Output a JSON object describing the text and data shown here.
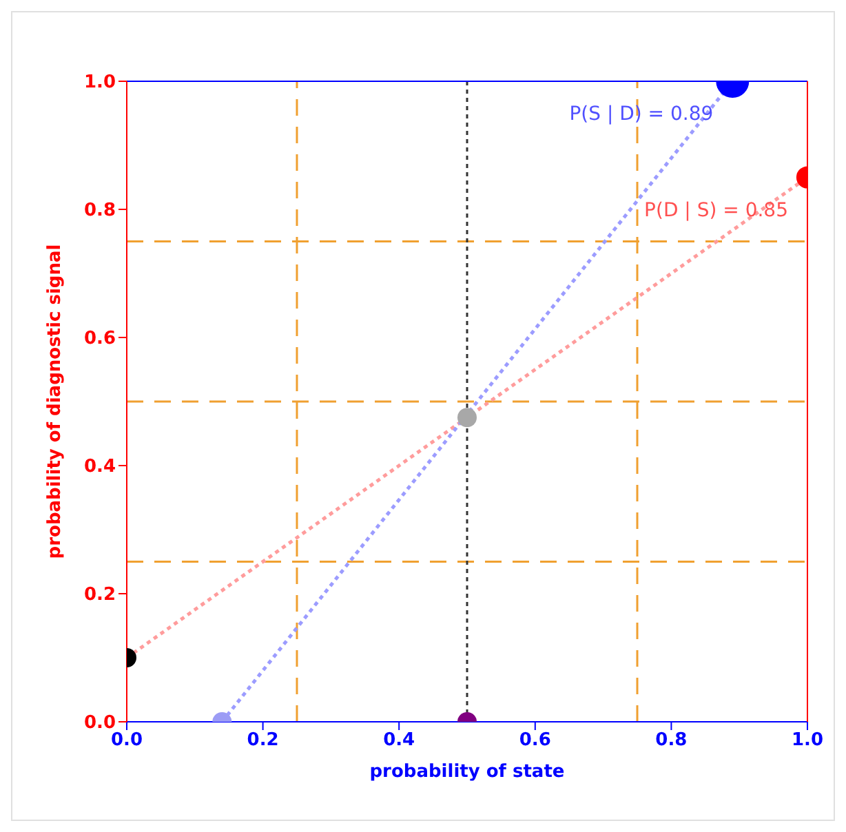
{
  "chart_data": {
    "type": "bubble",
    "xlabel": "probability of state",
    "ylabel": "probability of diagnostic signal",
    "xlim": [
      0,
      1
    ],
    "ylim": [
      0,
      1
    ],
    "xticks": [
      {
        "value": 0,
        "label": "0.0"
      },
      {
        "value": 0.2,
        "label": "0.2"
      },
      {
        "value": 0.4,
        "label": "0.4"
      },
      {
        "value": 0.6,
        "label": "0.6"
      },
      {
        "value": 0.8,
        "label": "0.8"
      },
      {
        "value": 1,
        "label": "1.0"
      }
    ],
    "yticks": [
      {
        "value": 0,
        "label": "0.0"
      },
      {
        "value": 0.2,
        "label": "0.2"
      },
      {
        "value": 0.4,
        "label": "0.4"
      },
      {
        "value": 0.6,
        "label": "0.6"
      },
      {
        "value": 0.8,
        "label": "0.8"
      },
      {
        "value": 1,
        "label": "1.0"
      }
    ],
    "series": [
      {
        "type": "line",
        "color": "#ff9c9c",
        "line_style": "dotted",
        "x": [
          0,
          1
        ],
        "values": [
          0.1,
          0.85
        ]
      },
      {
        "type": "line",
        "color": "#9c9cff",
        "line_style": "dotted",
        "x": [
          0.14,
          0.89
        ],
        "values": [
          0,
          1
        ]
      },
      {
        "x": [
          0,
          0.14,
          0.5,
          0.5,
          0.89,
          1
        ],
        "values": [
          0.1,
          0,
          0,
          0.475,
          1,
          0.85
        ],
        "sizes": [
          0.34,
          0.34,
          0.34,
          0.34,
          1,
          0.45
        ],
        "colors": [
          "#000000",
          "#9c9cf5",
          "#800080",
          "#a8a8a8",
          "#0000ff",
          "#ff0000"
        ]
      }
    ],
    "ref_lines": [
      {
        "axis": "x",
        "value": 0.25,
        "color": "#f0a030",
        "line_style": "dashed"
      },
      {
        "axis": "x",
        "value": 0.75,
        "color": "#f0a030",
        "line_style": "dashed"
      },
      {
        "axis": "y",
        "value": 0.25,
        "color": "#f0a030",
        "line_style": "dashed"
      },
      {
        "axis": "y",
        "value": 0.5,
        "color": "#f0a030",
        "line_style": "dashed"
      },
      {
        "axis": "y",
        "value": 0.75,
        "color": "#f0a030",
        "line_style": "dashed"
      },
      {
        "axis": "x",
        "value": 0.5,
        "color": "#333333",
        "line_style": "dotted"
      }
    ],
    "annotations": [
      {
        "text": "P(S | D) = 0.89",
        "x": 0.89,
        "y": 1
      },
      {
        "text": "P(D | S) = 0.85",
        "x": 1,
        "y": 0.85
      }
    ]
  }
}
